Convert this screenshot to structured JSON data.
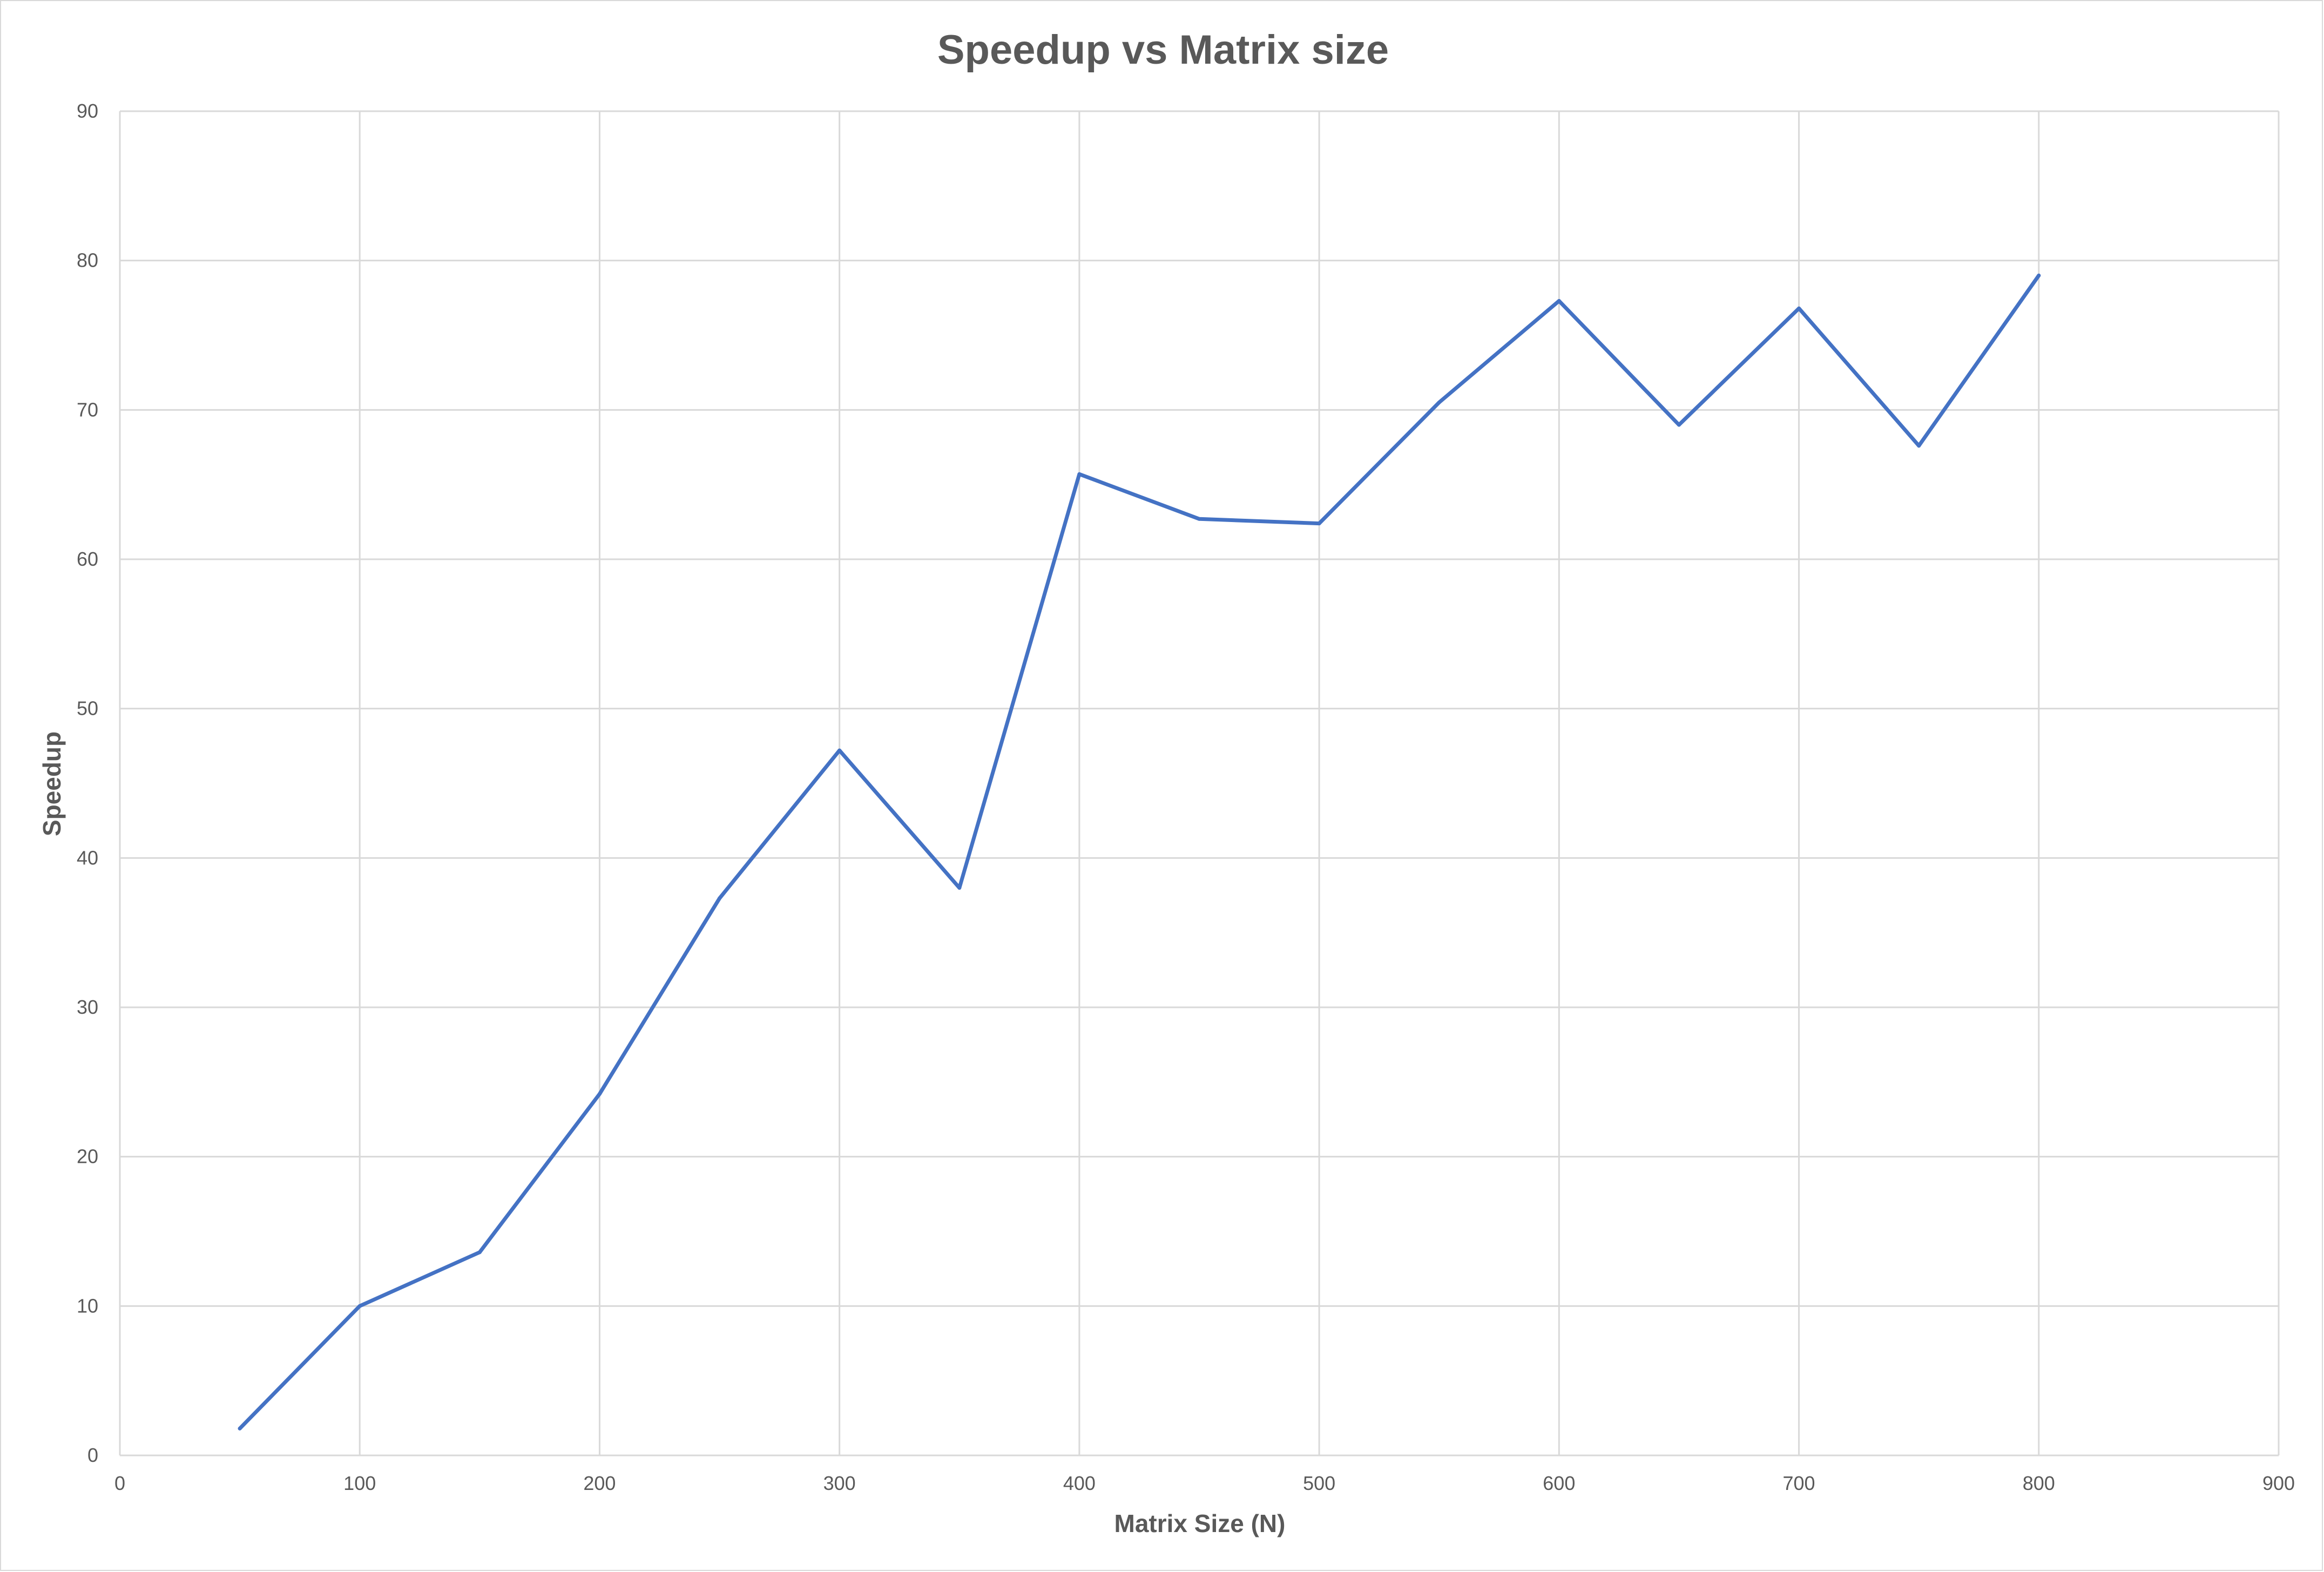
{
  "chart_data": {
    "type": "scatter",
    "title": "Speedup vs Matrix size",
    "xlabel": "Matrix Size (N)",
    "ylabel": "Speedup",
    "xlim": [
      0,
      900
    ],
    "ylim": [
      0,
      90
    ],
    "x_ticks": [
      0,
      100,
      200,
      300,
      400,
      500,
      600,
      700,
      800,
      900
    ],
    "y_ticks": [
      0,
      10,
      20,
      30,
      40,
      50,
      60,
      70,
      80,
      90
    ],
    "grid": true,
    "legend": "none",
    "series": [
      {
        "color": "#4472c4",
        "x": [
          50,
          100,
          150,
          200,
          250,
          300,
          350,
          400,
          450,
          500,
          550,
          600,
          650,
          700,
          750,
          800
        ],
        "y": [
          1.8,
          10.0,
          13.6,
          24.2,
          37.3,
          47.2,
          38.0,
          65.7,
          62.7,
          62.4,
          70.5,
          77.3,
          69.0,
          76.8,
          67.6,
          79.0
        ]
      }
    ]
  }
}
